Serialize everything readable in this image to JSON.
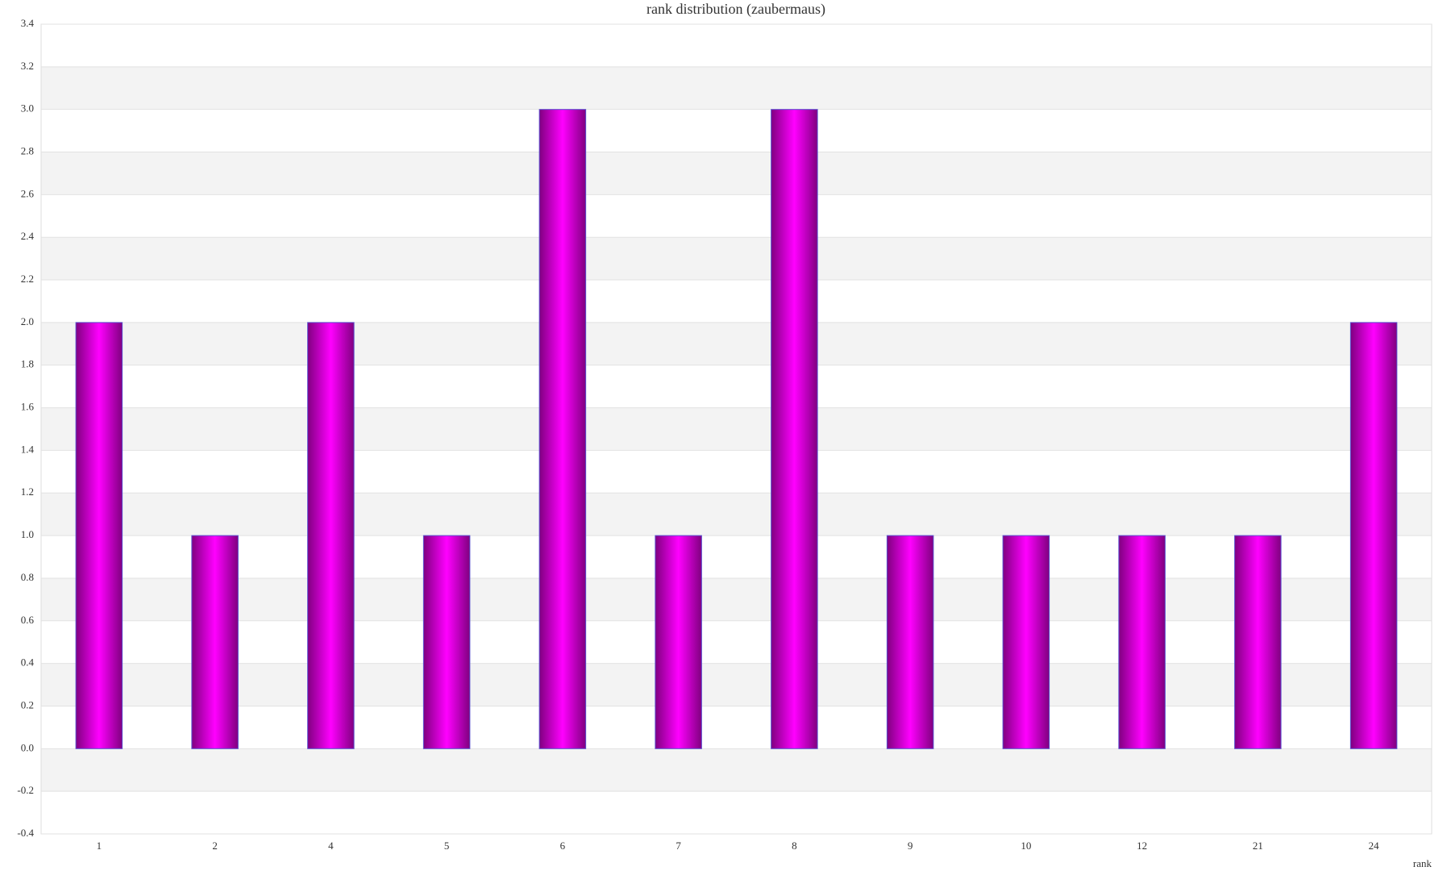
{
  "chart_data": {
    "type": "bar",
    "title": "rank distribution (zaubermaus)",
    "x_label": "rank",
    "categories": [
      "1",
      "2",
      "4",
      "5",
      "6",
      "7",
      "8",
      "9",
      "10",
      "12",
      "21",
      "24"
    ],
    "values": [
      2,
      1,
      2,
      1,
      3,
      1,
      3,
      1,
      1,
      1,
      1,
      2
    ],
    "color": "#ff00ff",
    "ylim": [
      -0.4,
      3.4
    ],
    "yticks": [
      -0.4,
      -0.2,
      {
        "value": 0,
        "label": "0.0"
      },
      0.2,
      0.4,
      0.6,
      0.8,
      {
        "value": 1,
        "label": "1.0"
      },
      1.2,
      1.4,
      1.6,
      1.8,
      {
        "value": 2,
        "label": "2.0"
      },
      2.2,
      2.4,
      2.6,
      2.8,
      {
        "value": 3,
        "label": "3.0"
      },
      3.2,
      3.4
    ],
    "grid": true
  }
}
